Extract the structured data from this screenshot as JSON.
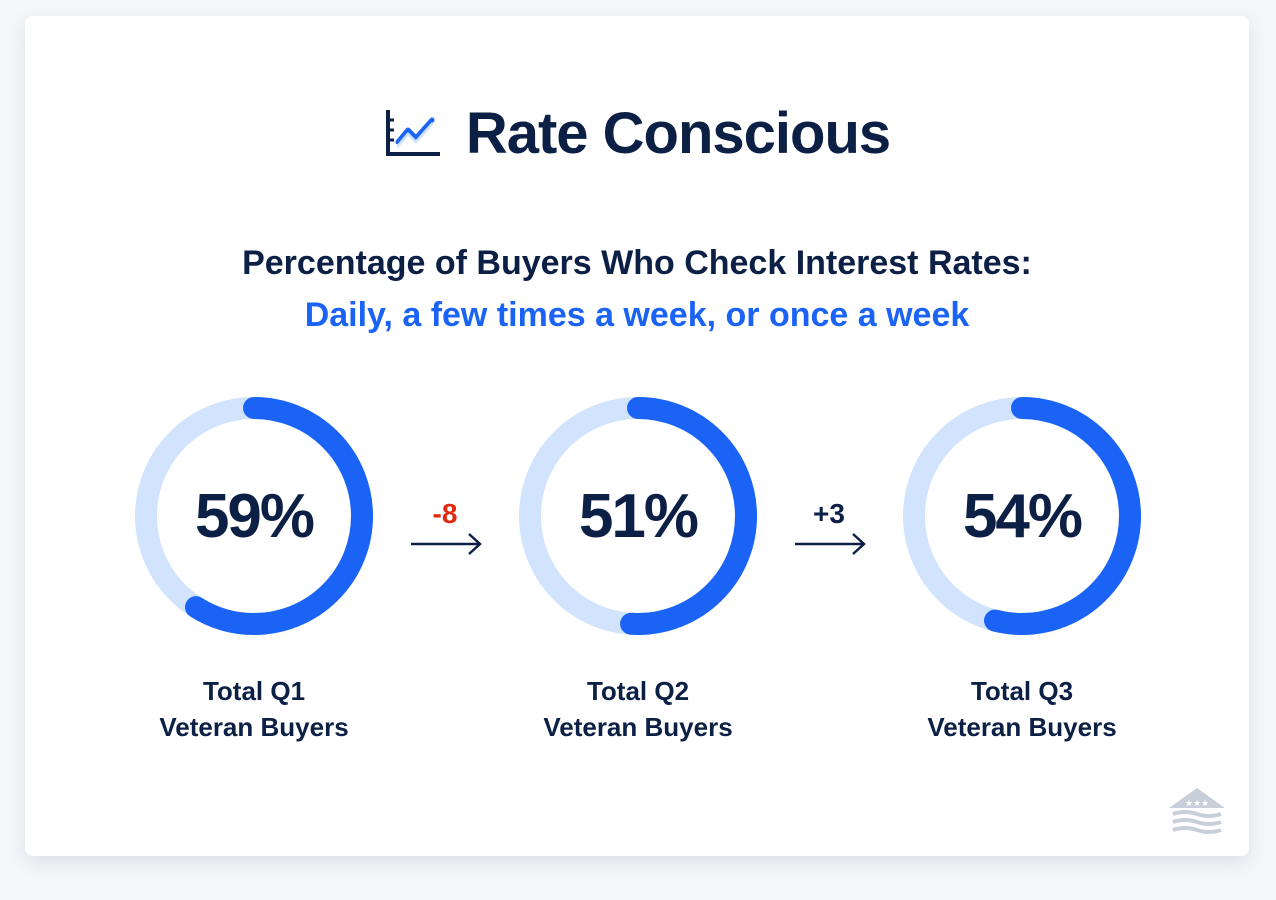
{
  "title": "Rate Conscious",
  "title_icon": "line-chart-icon",
  "subtitle_line1": "Percentage of Buyers Who Check Interest Rates:",
  "subtitle_line2": "Daily, a few times a week, or once a week",
  "colors": {
    "navy": "#0c1f45",
    "accent": "#1a63f5",
    "ring_track": "#d2e4fd",
    "decrease": "#e02a10"
  },
  "chart_data": {
    "type": "donut",
    "unit": "%",
    "items": [
      {
        "label_line1": "Total Q1",
        "label_line2": "Veteran Buyers",
        "value": 59,
        "display": "59%"
      },
      {
        "label_line1": "Total Q2",
        "label_line2": "Veteran Buyers",
        "value": 51,
        "display": "51%"
      },
      {
        "label_line1": "Total Q3",
        "label_line2": "Veteran Buyers",
        "value": 54,
        "display": "54%"
      }
    ],
    "changes": [
      {
        "text": "-8",
        "value": -8,
        "color": "#e02a10"
      },
      {
        "text": "+3",
        "value": 3,
        "color": "#0c1f45"
      }
    ]
  },
  "logo_icon": "house-flag-logo-icon"
}
